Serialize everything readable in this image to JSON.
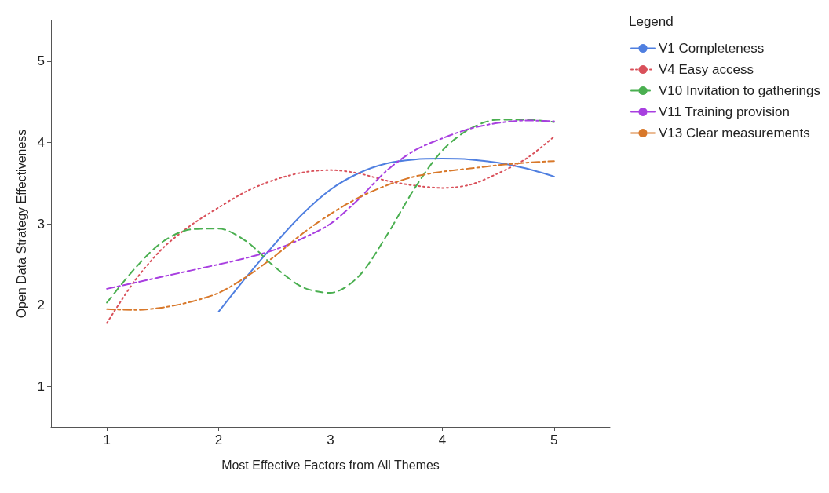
{
  "chart_data": {
    "type": "line",
    "xlabel": "Most Effective Factors from All Themes",
    "ylabel": "Open Data Strategy Effectiveness",
    "legend_title": "Legend",
    "xlim": [
      0.5,
      5.5
    ],
    "xticks": [
      1,
      2,
      3,
      4,
      5
    ],
    "ylim": [
      0.5,
      5.5
    ],
    "yticks": [
      1,
      2,
      3,
      4,
      5
    ],
    "grid": false,
    "legend": "right",
    "marker": "none",
    "series": [
      {
        "name": "V1 Completeness",
        "color": "#4f7fe0",
        "line_style": "solid",
        "x": [
          2,
          2.25,
          2.5,
          2.75,
          3,
          3.25,
          3.5,
          3.75,
          4,
          4.25,
          4.5,
          4.75,
          5
        ],
        "values": [
          1.92,
          2.35,
          2.75,
          3.12,
          3.42,
          3.62,
          3.74,
          3.79,
          3.8,
          3.79,
          3.75,
          3.68,
          3.58
        ]
      },
      {
        "name": "V4 Easy access",
        "color": "#d9505a",
        "line_style": "dotted",
        "x": [
          1,
          1.25,
          1.5,
          1.75,
          2,
          2.25,
          2.5,
          2.75,
          3,
          3.25,
          3.5,
          3.75,
          4,
          4.25,
          4.5,
          4.75,
          5
        ],
        "values": [
          1.78,
          2.3,
          2.7,
          2.98,
          3.2,
          3.4,
          3.54,
          3.63,
          3.66,
          3.62,
          3.53,
          3.47,
          3.44,
          3.48,
          3.62,
          3.8,
          4.07
        ]
      },
      {
        "name": "V10 Invitation to gatherings",
        "color": "#4aaf50",
        "line_style": "dashed",
        "x": [
          1,
          1.25,
          1.5,
          1.75,
          2,
          2.25,
          2.5,
          2.75,
          3,
          3.25,
          3.5,
          3.75,
          4,
          4.25,
          4.5,
          4.75,
          5
        ],
        "values": [
          2.03,
          2.45,
          2.78,
          2.93,
          2.94,
          2.78,
          2.47,
          2.22,
          2.15,
          2.35,
          2.85,
          3.43,
          3.9,
          4.17,
          4.28,
          4.28,
          4.25
        ]
      },
      {
        "name": "V11 Training provision",
        "color": "#a83fe0",
        "line_style": "dashdot",
        "x": [
          1,
          1.5,
          2,
          2.25,
          2.5,
          2.75,
          3,
          3.25,
          3.5,
          3.75,
          4,
          4.25,
          4.5,
          4.75,
          5
        ],
        "values": [
          2.2,
          2.35,
          2.5,
          2.58,
          2.68,
          2.82,
          3.0,
          3.3,
          3.65,
          3.9,
          4.05,
          4.17,
          4.24,
          4.27,
          4.26
        ]
      },
      {
        "name": "V13 Clear measurements",
        "color": "#d8782a",
        "line_style": "dashdot",
        "x": [
          1,
          1.25,
          1.5,
          1.75,
          2,
          2.25,
          2.5,
          2.75,
          3,
          3.25,
          3.5,
          3.75,
          4,
          4.25,
          4.5,
          4.75,
          5
        ],
        "values": [
          1.95,
          1.94,
          1.97,
          2.04,
          2.15,
          2.35,
          2.6,
          2.88,
          3.12,
          3.32,
          3.47,
          3.58,
          3.64,
          3.68,
          3.72,
          3.75,
          3.77
        ]
      }
    ]
  }
}
